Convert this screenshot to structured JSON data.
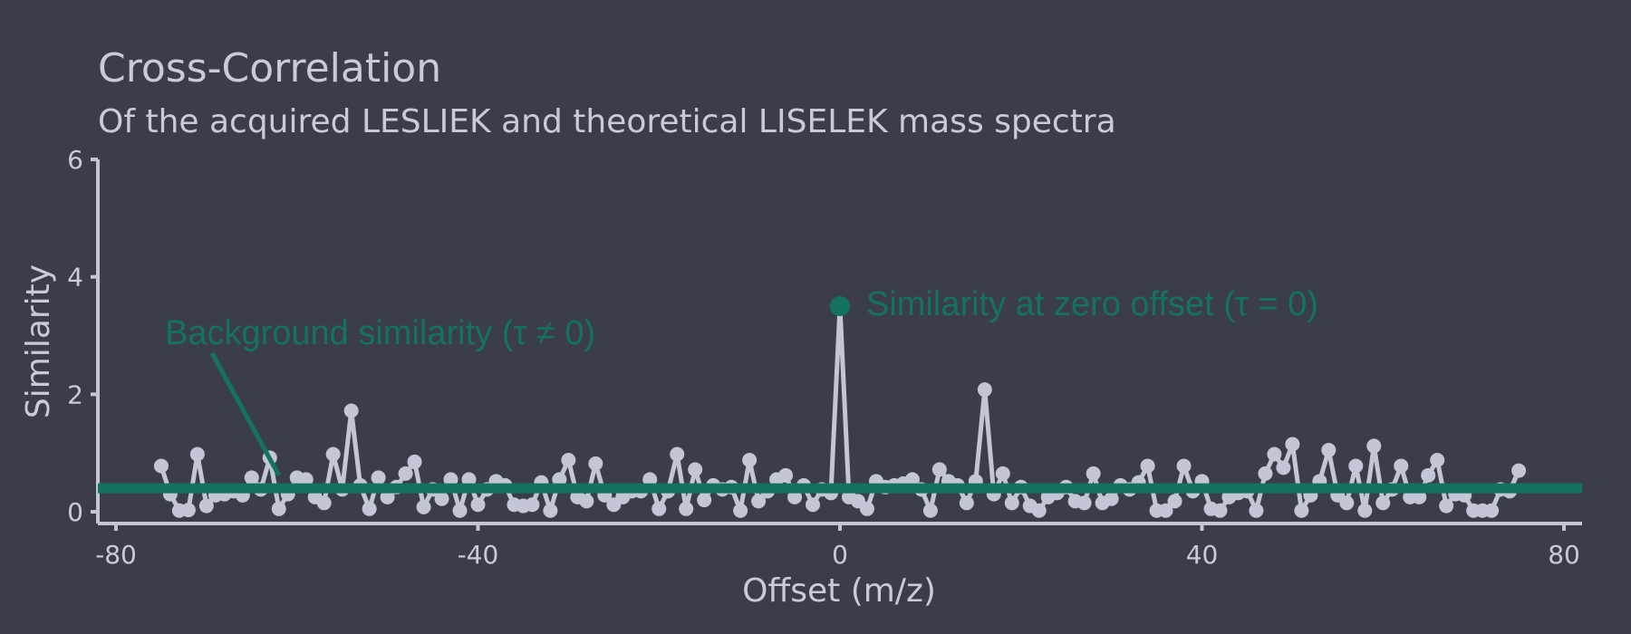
{
  "chart_data": {
    "type": "line",
    "title": "Cross-Correlation",
    "subtitle": "Of the acquired LESLIEK and theoretical LISELEK mass spectra",
    "xlabel": "Offset (m/z)",
    "ylabel": "Similarity",
    "xlim": [
      -82,
      82
    ],
    "ylim": [
      -0.2,
      6
    ],
    "xticks": [
      -80,
      -40,
      0,
      40,
      80
    ],
    "yticks": [
      0,
      2,
      4,
      6
    ],
    "grid": false,
    "colors": {
      "series": "#c3c6d4",
      "accent": "#137360",
      "background": "#3b3e4a"
    },
    "series": [
      {
        "x": [
          -75,
          -74,
          -73,
          -72,
          -71,
          -70,
          -69,
          -68,
          -67,
          -66,
          -65,
          -64,
          -63,
          -62,
          -61,
          -60,
          -59,
          -58,
          -57,
          -56,
          -55,
          -54,
          -53,
          -52,
          -51,
          -50,
          -49,
          -48,
          -47,
          -46,
          -45,
          -44,
          -43,
          -42,
          -41,
          -40,
          -39,
          -38,
          -37,
          -36,
          -35,
          -34,
          -33,
          -32,
          -31,
          -30,
          -29,
          -28,
          -27,
          -26,
          -25,
          -24,
          -23,
          -22,
          -21,
          -20,
          -19,
          -18,
          -17,
          -16,
          -15,
          -14,
          -13,
          -12,
          -11,
          -10,
          -9,
          -8,
          -7,
          -6,
          -5,
          -4,
          -3,
          -2,
          -1,
          0,
          1,
          2,
          3,
          4,
          5,
          6,
          7,
          8,
          9,
          10,
          11,
          12,
          13,
          14,
          15,
          16,
          17,
          18,
          19,
          20,
          21,
          22,
          23,
          24,
          25,
          26,
          27,
          28,
          29,
          30,
          31,
          32,
          33,
          34,
          35,
          36,
          37,
          38,
          39,
          40,
          41,
          42,
          43,
          44,
          45,
          46,
          47,
          48,
          49,
          50,
          51,
          52,
          53,
          54,
          55,
          56,
          57,
          58,
          59,
          60,
          61,
          62,
          63,
          64,
          65,
          66,
          67,
          68,
          69,
          70,
          71,
          72,
          73,
          74,
          75
        ],
        "values": [
          0.78,
          0.3,
          0.02,
          0.03,
          0.98,
          0.1,
          0.28,
          0.3,
          0.35,
          0.28,
          0.58,
          0.38,
          0.92,
          0.05,
          0.3,
          0.58,
          0.55,
          0.25,
          0.15,
          0.98,
          0.38,
          1.72,
          0.45,
          0.05,
          0.58,
          0.25,
          0.42,
          0.65,
          0.85,
          0.08,
          0.38,
          0.22,
          0.55,
          0.02,
          0.55,
          0.12,
          0.38,
          0.52,
          0.45,
          0.12,
          0.1,
          0.12,
          0.5,
          0.02,
          0.55,
          0.88,
          0.25,
          0.18,
          0.82,
          0.28,
          0.12,
          0.25,
          0.35,
          0.35,
          0.55,
          0.05,
          0.35,
          0.98,
          0.05,
          0.72,
          0.2,
          0.45,
          0.38,
          0.42,
          0.02,
          0.88,
          0.18,
          0.35,
          0.55,
          0.62,
          0.25,
          0.45,
          0.12,
          0.38,
          0.32,
          3.5,
          0.25,
          0.18,
          0.05,
          0.52,
          0.42,
          0.45,
          0.48,
          0.55,
          0.38,
          0.02,
          0.72,
          0.52,
          0.45,
          0.15,
          0.52,
          2.08,
          0.3,
          0.65,
          0.15,
          0.42,
          0.1,
          0.02,
          0.25,
          0.32,
          0.42,
          0.18,
          0.15,
          0.65,
          0.15,
          0.22,
          0.45,
          0.38,
          0.5,
          0.78,
          0.02,
          0.02,
          0.18,
          0.78,
          0.35,
          0.52,
          0.05,
          0.02,
          0.25,
          0.32,
          0.35,
          0.02,
          0.65,
          0.98,
          0.75,
          1.15,
          0.02,
          0.28,
          0.52,
          1.05,
          0.28,
          0.15,
          0.78,
          0.02,
          1.12,
          0.15,
          0.38,
          0.78,
          0.25,
          0.25,
          0.62,
          0.88,
          0.1,
          0.3,
          0.28,
          0.02,
          0.02,
          0.02,
          0.38,
          0.35,
          0.7
        ]
      }
    ],
    "baseline": 0.4,
    "peak": {
      "x": 0,
      "y": 3.5
    },
    "annotations": {
      "background": "Background similarity (τ ≠ 0)",
      "zero_offset": "Similarity at zero offset (τ = 0)"
    }
  }
}
